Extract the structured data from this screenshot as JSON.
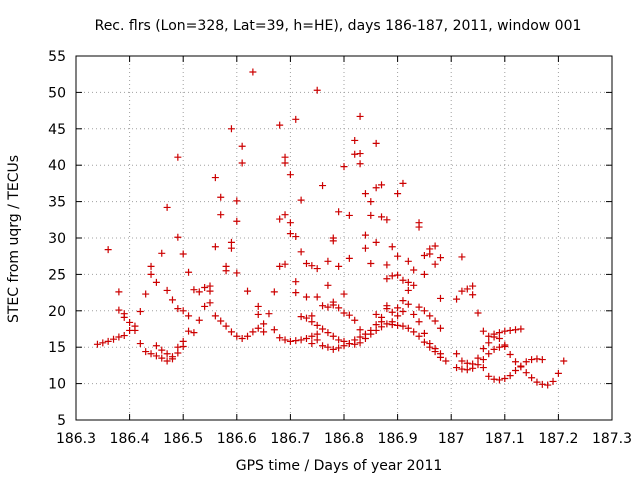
{
  "chart_data": {
    "type": "scatter",
    "title": "Rec. flrs (Lon=328, Lat=39, h=HE), days 186-187, 2011, window 001",
    "xlabel": "GPS time / Days of year 2011",
    "ylabel": "STEC from uqrg / TECUs",
    "xlim": [
      186.3,
      187.3
    ],
    "ylim": [
      5,
      55
    ],
    "x_ticks": [
      186.3,
      186.4,
      186.5,
      186.6,
      186.7,
      186.8,
      186.9,
      187.0,
      187.1,
      187.2,
      187.3
    ],
    "x_tick_labels": [
      "186.3",
      "186.4",
      "186.5",
      "186.6",
      "186.7",
      "186.8",
      "186.9",
      "187",
      "187.1",
      "187.2",
      "187.3"
    ],
    "y_ticks": [
      5,
      10,
      15,
      20,
      25,
      30,
      35,
      40,
      45,
      50,
      55
    ],
    "y_tick_labels": [
      "5",
      "10",
      "15",
      "20",
      "25",
      "30",
      "35",
      "40",
      "45",
      "50",
      "55"
    ],
    "grid": true,
    "marker": "+",
    "color": "#cc0000",
    "points": [
      [
        186.34,
        15.4
      ],
      [
        186.35,
        15.6
      ],
      [
        186.36,
        15.8
      ],
      [
        186.37,
        16.1
      ],
      [
        186.38,
        16.4
      ],
      [
        186.39,
        16.6
      ],
      [
        186.4,
        17.3
      ],
      [
        186.41,
        17.9
      ],
      [
        186.42,
        19.9
      ],
      [
        186.36,
        28.4
      ],
      [
        186.38,
        22.6
      ],
      [
        186.38,
        20.1
      ],
      [
        186.39,
        19.6
      ],
      [
        186.39,
        19.1
      ],
      [
        186.4,
        18.4
      ],
      [
        186.41,
        17.3
      ],
      [
        186.42,
        15.5
      ],
      [
        186.43,
        14.4
      ],
      [
        186.44,
        14.1
      ],
      [
        186.45,
        13.8
      ],
      [
        186.46,
        13.5
      ],
      [
        186.47,
        13.1
      ],
      [
        186.48,
        13.4
      ],
      [
        186.49,
        14.2
      ],
      [
        186.5,
        15.1
      ],
      [
        186.43,
        22.3
      ],
      [
        186.44,
        26.1
      ],
      [
        186.44,
        25.0
      ],
      [
        186.45,
        23.9
      ],
      [
        186.46,
        27.9
      ],
      [
        186.47,
        22.8
      ],
      [
        186.48,
        21.5
      ],
      [
        186.49,
        20.3
      ],
      [
        186.45,
        15.2
      ],
      [
        186.46,
        14.6
      ],
      [
        186.47,
        14.1
      ],
      [
        186.48,
        13.7
      ],
      [
        186.49,
        15.0
      ],
      [
        186.5,
        15.8
      ],
      [
        186.47,
        34.2
      ],
      [
        186.49,
        41.1
      ],
      [
        186.49,
        30.1
      ],
      [
        186.5,
        27.8
      ],
      [
        186.51,
        25.3
      ],
      [
        186.52,
        22.9
      ],
      [
        186.53,
        22.6
      ],
      [
        186.54,
        23.2
      ],
      [
        186.55,
        23.4
      ],
      [
        186.5,
        20.0
      ],
      [
        186.51,
        19.3
      ],
      [
        186.51,
        17.2
      ],
      [
        186.52,
        17.0
      ],
      [
        186.53,
        18.7
      ],
      [
        186.54,
        20.6
      ],
      [
        186.55,
        21.1
      ],
      [
        186.56,
        19.3
      ],
      [
        186.57,
        18.6
      ],
      [
        186.58,
        17.9
      ],
      [
        186.59,
        17.1
      ],
      [
        186.6,
        16.5
      ],
      [
        186.61,
        16.2
      ],
      [
        186.62,
        16.5
      ],
      [
        186.63,
        17.1
      ],
      [
        186.55,
        22.7
      ],
      [
        186.56,
        28.8
      ],
      [
        186.56,
        38.3
      ],
      [
        186.57,
        33.2
      ],
      [
        186.57,
        35.6
      ],
      [
        186.58,
        25.5
      ],
      [
        186.58,
        26.1
      ],
      [
        186.59,
        28.6
      ],
      [
        186.59,
        29.4
      ],
      [
        186.59,
        45.0
      ],
      [
        186.6,
        32.3
      ],
      [
        186.6,
        35.1
      ],
      [
        186.6,
        25.2
      ],
      [
        186.61,
        40.3
      ],
      [
        186.61,
        42.6
      ],
      [
        186.62,
        22.7
      ],
      [
        186.63,
        52.8
      ],
      [
        186.64,
        20.6
      ],
      [
        186.64,
        19.5
      ],
      [
        186.65,
        18.2
      ],
      [
        186.66,
        19.6
      ],
      [
        186.67,
        22.6
      ],
      [
        186.68,
        26.1
      ],
      [
        186.68,
        32.6
      ],
      [
        186.69,
        33.2
      ],
      [
        186.69,
        26.4
      ],
      [
        186.69,
        40.3
      ],
      [
        186.69,
        41.1
      ],
      [
        186.7,
        38.7
      ],
      [
        186.7,
        32.1
      ],
      [
        186.7,
        30.6
      ],
      [
        186.71,
        30.2
      ],
      [
        186.71,
        46.3
      ],
      [
        186.64,
        17.6
      ],
      [
        186.65,
        17.1
      ],
      [
        186.67,
        17.4
      ],
      [
        186.68,
        16.3
      ],
      [
        186.69,
        16.0
      ],
      [
        186.7,
        15.8
      ],
      [
        186.71,
        15.9
      ],
      [
        186.72,
        16.0
      ],
      [
        186.73,
        16.2
      ],
      [
        186.74,
        16.5
      ],
      [
        186.75,
        16.8
      ],
      [
        186.68,
        45.5
      ],
      [
        186.71,
        22.5
      ],
      [
        186.71,
        24.0
      ],
      [
        186.72,
        28.1
      ],
      [
        186.72,
        35.2
      ],
      [
        186.73,
        26.5
      ],
      [
        186.73,
        21.9
      ],
      [
        186.74,
        26.2
      ],
      [
        186.74,
        19.3
      ],
      [
        186.75,
        50.3
      ],
      [
        186.75,
        21.9
      ],
      [
        186.75,
        25.8
      ],
      [
        186.76,
        20.7
      ],
      [
        186.76,
        37.2
      ],
      [
        186.77,
        26.8
      ],
      [
        186.77,
        20.5
      ],
      [
        186.72,
        19.2
      ],
      [
        186.73,
        19.0
      ],
      [
        186.74,
        18.5
      ],
      [
        186.75,
        18.0
      ],
      [
        186.76,
        17.5
      ],
      [
        186.77,
        17.0
      ],
      [
        186.78,
        16.5
      ],
      [
        186.79,
        16.0
      ],
      [
        186.8,
        15.8
      ],
      [
        186.81,
        15.5
      ],
      [
        186.82,
        15.4
      ],
      [
        186.83,
        15.6
      ],
      [
        186.84,
        16.2
      ],
      [
        186.85,
        16.8
      ],
      [
        186.74,
        15.5
      ],
      [
        186.75,
        16.0
      ],
      [
        186.76,
        15.2
      ],
      [
        186.77,
        15.0
      ],
      [
        186.78,
        14.7
      ],
      [
        186.79,
        14.9
      ],
      [
        186.8,
        15.2
      ],
      [
        186.81,
        15.5
      ],
      [
        186.82,
        16.0
      ],
      [
        186.83,
        16.4
      ],
      [
        186.84,
        16.8
      ],
      [
        186.85,
        17.3
      ],
      [
        186.77,
        23.5
      ],
      [
        186.78,
        21.2
      ],
      [
        186.78,
        29.6
      ],
      [
        186.78,
        30.0
      ],
      [
        186.79,
        26.1
      ],
      [
        186.79,
        33.6
      ],
      [
        186.8,
        22.3
      ],
      [
        186.8,
        39.8
      ],
      [
        186.81,
        33.1
      ],
      [
        186.81,
        27.2
      ],
      [
        186.82,
        43.4
      ],
      [
        186.82,
        41.5
      ],
      [
        186.83,
        41.6
      ],
      [
        186.83,
        46.7
      ],
      [
        186.83,
        40.2
      ],
      [
        186.84,
        28.6
      ],
      [
        186.84,
        36.1
      ],
      [
        186.78,
        20.8
      ],
      [
        186.79,
        20.4
      ],
      [
        186.8,
        19.7
      ],
      [
        186.81,
        19.4
      ],
      [
        186.82,
        18.7
      ],
      [
        186.83,
        17.4
      ],
      [
        186.84,
        30.4
      ],
      [
        186.85,
        26.5
      ],
      [
        186.85,
        33.1
      ],
      [
        186.85,
        35.0
      ],
      [
        186.86,
        36.9
      ],
      [
        186.86,
        29.4
      ],
      [
        186.86,
        43.0
      ],
      [
        186.87,
        37.3
      ],
      [
        186.87,
        32.9
      ],
      [
        186.88,
        32.5
      ],
      [
        186.88,
        26.3
      ],
      [
        186.88,
        24.4
      ],
      [
        186.89,
        24.8
      ],
      [
        186.89,
        28.8
      ],
      [
        186.9,
        27.5
      ],
      [
        186.9,
        24.9
      ],
      [
        186.9,
        36.1
      ],
      [
        186.91,
        37.5
      ],
      [
        186.91,
        24.2
      ],
      [
        186.92,
        23.9
      ],
      [
        186.92,
        26.8
      ],
      [
        186.86,
        19.5
      ],
      [
        186.86,
        18.1
      ],
      [
        186.87,
        18.5
      ],
      [
        186.87,
        19.1
      ],
      [
        186.88,
        20.3
      ],
      [
        186.88,
        20.7
      ],
      [
        186.89,
        19.8
      ],
      [
        186.89,
        18.5
      ],
      [
        186.9,
        20.4
      ],
      [
        186.9,
        19.3
      ],
      [
        186.91,
        19.9
      ],
      [
        186.91,
        21.4
      ],
      [
        186.92,
        20.9
      ],
      [
        186.92,
        22.8
      ],
      [
        186.93,
        23.5
      ],
      [
        186.93,
        25.6
      ],
      [
        186.94,
        31.5
      ],
      [
        186.94,
        32.1
      ],
      [
        186.95,
        27.6
      ],
      [
        186.95,
        25.0
      ],
      [
        186.96,
        27.8
      ],
      [
        186.96,
        28.5
      ],
      [
        186.97,
        28.9
      ],
      [
        186.97,
        26.4
      ],
      [
        186.98,
        27.3
      ],
      [
        186.98,
        21.7
      ],
      [
        186.86,
        17.3
      ],
      [
        186.87,
        17.8
      ],
      [
        186.88,
        18.2
      ],
      [
        186.89,
        18.1
      ],
      [
        186.9,
        18.0
      ],
      [
        186.91,
        17.9
      ],
      [
        186.92,
        17.6
      ],
      [
        186.93,
        17.1
      ],
      [
        186.94,
        16.5
      ],
      [
        186.95,
        15.7
      ],
      [
        186.96,
        15.0
      ],
      [
        186.97,
        14.4
      ],
      [
        186.98,
        13.6
      ],
      [
        186.99,
        13.1
      ],
      [
        186.93,
        19.5
      ],
      [
        186.94,
        18.5
      ],
      [
        186.95,
        16.9
      ],
      [
        186.96,
        15.5
      ],
      [
        186.97,
        14.8
      ],
      [
        186.98,
        14.1
      ],
      [
        186.94,
        20.5
      ],
      [
        186.95,
        20.0
      ],
      [
        186.96,
        19.3
      ],
      [
        186.97,
        18.6
      ],
      [
        186.98,
        17.6
      ],
      [
        187.01,
        21.6
      ],
      [
        187.02,
        22.7
      ],
      [
        187.02,
        27.4
      ],
      [
        187.03,
        23.0
      ],
      [
        187.04,
        22.2
      ],
      [
        187.04,
        23.4
      ],
      [
        187.05,
        19.7
      ],
      [
        187.01,
        14.1
      ],
      [
        187.02,
        13.1
      ],
      [
        187.03,
        12.8
      ],
      [
        187.04,
        12.7
      ],
      [
        187.05,
        13.5
      ],
      [
        187.06,
        14.8
      ],
      [
        187.07,
        15.6
      ],
      [
        187.08,
        16.4
      ],
      [
        187.09,
        17.0
      ],
      [
        187.1,
        17.2
      ],
      [
        187.11,
        17.3
      ],
      [
        187.12,
        17.4
      ],
      [
        187.13,
        17.5
      ],
      [
        187.01,
        12.2
      ],
      [
        187.02,
        12.0
      ],
      [
        187.03,
        11.9
      ],
      [
        187.04,
        12.1
      ],
      [
        187.05,
        12.6
      ],
      [
        187.06,
        13.3
      ],
      [
        187.07,
        14.1
      ],
      [
        187.08,
        14.7
      ],
      [
        187.09,
        15.0
      ],
      [
        187.1,
        15.1
      ],
      [
        187.06,
        12.2
      ],
      [
        187.07,
        11.0
      ],
      [
        187.08,
        10.6
      ],
      [
        187.09,
        10.5
      ],
      [
        187.1,
        10.7
      ],
      [
        187.11,
        11.1
      ],
      [
        187.12,
        11.8
      ],
      [
        187.13,
        12.4
      ],
      [
        187.14,
        13.0
      ],
      [
        187.15,
        13.3
      ],
      [
        187.16,
        13.4
      ],
      [
        187.17,
        13.3
      ],
      [
        187.06,
        17.2
      ],
      [
        187.07,
        16.5
      ],
      [
        187.08,
        16.8
      ],
      [
        187.09,
        16.2
      ],
      [
        187.1,
        15.3
      ],
      [
        187.11,
        14.0
      ],
      [
        187.12,
        13.0
      ],
      [
        187.13,
        12.3
      ],
      [
        187.14,
        11.5
      ],
      [
        187.15,
        10.8
      ],
      [
        187.16,
        10.2
      ],
      [
        187.17,
        9.9
      ],
      [
        187.18,
        9.8
      ],
      [
        187.19,
        10.3
      ],
      [
        187.2,
        11.4
      ],
      [
        187.21,
        13.1
      ]
    ]
  }
}
